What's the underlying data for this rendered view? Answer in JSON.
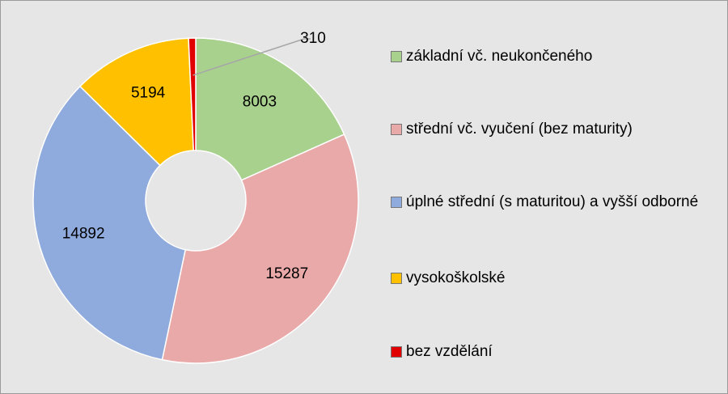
{
  "chart_data": {
    "type": "donut",
    "categories": [
      "základní vč. neukončeného",
      "střední vč. vyučení (bez maturity)",
      "úplné střední (s maturitou) a vyšší odborné",
      "vysokoškolské",
      "bez vzdělání"
    ],
    "values": [
      8003,
      15287,
      14892,
      5194,
      310
    ],
    "colors": [
      "#a9d18e",
      "#eaa9a9",
      "#8faadc",
      "#ffc000",
      "#e00000"
    ],
    "legend": "right"
  }
}
